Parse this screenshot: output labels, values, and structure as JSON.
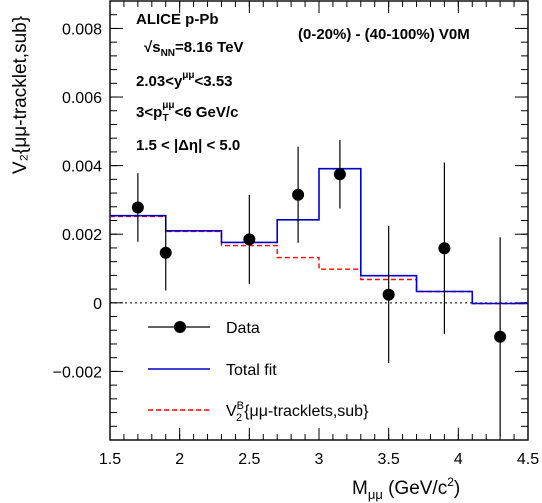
{
  "chart_data": {
    "type": "line",
    "title": "",
    "experiment": "ALICE p-Pb",
    "annotations": [
      "(0-20%) - (40-100%) V0M"
    ],
    "info_lines": [
      {
        "base": "√s",
        "sub": "NN",
        "rest": "=8.16 TeV"
      },
      {
        "pre": "2.03<y",
        "sup": "μμ",
        "post": "<3.53"
      },
      {
        "pre": "3<p",
        "sup": "μμ",
        "sub": "T",
        "post": "<6 GeV/c"
      },
      {
        "text": "1.5 < |Δη| < 5.0"
      }
    ],
    "xlabel": {
      "main": "M",
      "sub": "μμ",
      "rest": " (GeV/c",
      "sup": "2",
      "end": ")"
    },
    "ylabel": "V₂{μμ-tracklet,sub}",
    "xlim": [
      1.5,
      4.5
    ],
    "ylim": [
      -0.004,
      0.0088
    ],
    "xticks": [
      1.5,
      2,
      2.5,
      3,
      3.5,
      4,
      4.5
    ],
    "xtick_labels": [
      "1.5",
      "2",
      "2.5",
      "3",
      "3.5",
      "4",
      "4.5"
    ],
    "yticks": [
      -0.002,
      0,
      0.002,
      0.004,
      0.006,
      0.008
    ],
    "ytick_labels": [
      "−0.002",
      "0",
      "0.002",
      "0.004",
      "0.006",
      "0.008"
    ],
    "grid": false,
    "legend": {
      "position": "bottom-left",
      "entries": [
        {
          "label": "Data"
        },
        {
          "label": "Total fit"
        },
        {
          "label_main": "V",
          "label_sup": "B",
          "label_sub": "2",
          "label_rest": "{μμ-tracklets,sub}"
        }
      ]
    },
    "series": [
      {
        "name": "Data",
        "style": "points-with-errorbars",
        "color": "#000000",
        "x": [
          1.7,
          1.9,
          2.5,
          2.85,
          3.15,
          3.5,
          3.9,
          4.3
        ],
        "y": [
          0.00278,
          0.00146,
          0.00185,
          0.00315,
          0.00375,
          0.00024,
          0.00159,
          -0.00099
        ],
        "yerr": [
          0.001,
          0.0011,
          0.0013,
          0.0014,
          0.001,
          0.002,
          0.0025,
          0.0029
        ]
      },
      {
        "name": "Total fit",
        "style": "step",
        "color": "#0000cc",
        "edges": [
          1.5,
          1.9,
          2.3,
          2.7,
          3.0,
          3.3,
          3.7,
          4.1,
          4.5
        ],
        "values": [
          0.00254,
          0.0021,
          0.00176,
          0.00242,
          0.00391,
          0.00079,
          0.00033,
          -2e-05
        ]
      },
      {
        "name": "V2B{μμ-tracklets,sub}",
        "style": "dashed-step",
        "color": "#ff0000",
        "edges": [
          1.5,
          1.9,
          2.3,
          2.7,
          3.0,
          3.3,
          3.7,
          4.1,
          4.5
        ],
        "values": [
          0.00252,
          0.00208,
          0.00167,
          0.00132,
          0.00098,
          0.00068,
          0.00033,
          -2e-05
        ]
      }
    ]
  }
}
